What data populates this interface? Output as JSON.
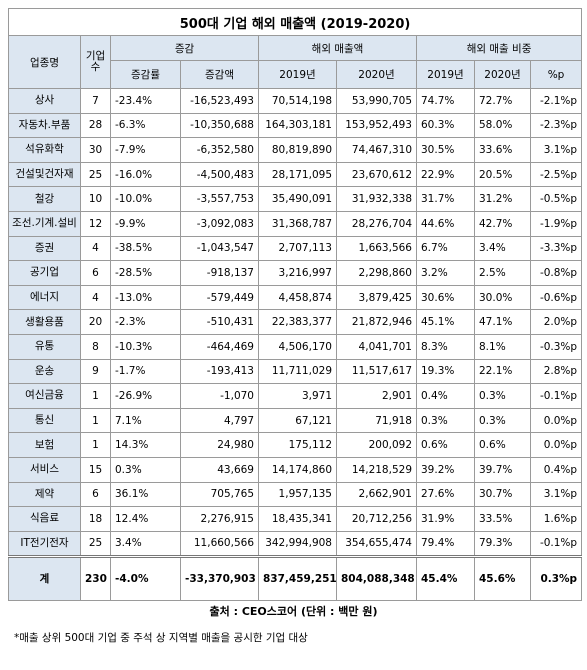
{
  "header": {
    "title": "500대 기업 해외 매출액 (2019-2020)"
  },
  "table": {
    "head": {
      "industry": "업종명",
      "count": "기업수",
      "change": "증감",
      "change_rate": "증감률",
      "change_amount": "증감액",
      "sales": "해외 매출액",
      "sales_2019": "2019년",
      "sales_2020": "2020년",
      "share": "해외 매출 비중",
      "share_2019": "2019년",
      "share_2020": "2020년",
      "share_diff": "%p"
    },
    "rows": [
      [
        "상사",
        "7",
        "-23.4%",
        "-16,523,493",
        "70,514,198",
        "53,990,705",
        "74.7%",
        "72.7%",
        "-2.1%p"
      ],
      [
        "자동차.부품",
        "28",
        "-6.3%",
        "-10,350,688",
        "164,303,181",
        "153,952,493",
        "60.3%",
        "58.0%",
        "-2.3%p"
      ],
      [
        "석유화학",
        "30",
        "-7.9%",
        "-6,352,580",
        "80,819,890",
        "74,467,310",
        "30.5%",
        "33.6%",
        "3.1%p"
      ],
      [
        "건설및건자재",
        "25",
        "-16.0%",
        "-4,500,483",
        "28,171,095",
        "23,670,612",
        "22.9%",
        "20.5%",
        "-2.5%p"
      ],
      [
        "철강",
        "10",
        "-10.0%",
        "-3,557,753",
        "35,490,091",
        "31,932,338",
        "31.7%",
        "31.2%",
        "-0.5%p"
      ],
      [
        "조선.기계.설비",
        "12",
        "-9.9%",
        "-3,092,083",
        "31,368,787",
        "28,276,704",
        "44.6%",
        "42.7%",
        "-1.9%p"
      ],
      [
        "증권",
        "4",
        "-38.5%",
        "-1,043,547",
        "2,707,113",
        "1,663,566",
        "6.7%",
        "3.4%",
        "-3.3%p"
      ],
      [
        "공기업",
        "6",
        "-28.5%",
        "-918,137",
        "3,216,997",
        "2,298,860",
        "3.2%",
        "2.5%",
        "-0.8%p"
      ],
      [
        "에너지",
        "4",
        "-13.0%",
        "-579,449",
        "4,458,874",
        "3,879,425",
        "30.6%",
        "30.0%",
        "-0.6%p"
      ],
      [
        "생활용품",
        "20",
        "-2.3%",
        "-510,431",
        "22,383,377",
        "21,872,946",
        "45.1%",
        "47.1%",
        "2.0%p"
      ],
      [
        "유통",
        "8",
        "-10.3%",
        "-464,469",
        "4,506,170",
        "4,041,701",
        "8.3%",
        "8.1%",
        "-0.3%p"
      ],
      [
        "운송",
        "9",
        "-1.7%",
        "-193,413",
        "11,711,029",
        "11,517,617",
        "19.3%",
        "22.1%",
        "2.8%p"
      ],
      [
        "여신금융",
        "1",
        "-26.9%",
        "-1,070",
        "3,971",
        "2,901",
        "0.4%",
        "0.3%",
        "-0.1%p"
      ],
      [
        "통신",
        "1",
        "7.1%",
        "4,797",
        "67,121",
        "71,918",
        "0.3%",
        "0.3%",
        "0.0%p"
      ],
      [
        "보험",
        "1",
        "14.3%",
        "24,980",
        "175,112",
        "200,092",
        "0.6%",
        "0.6%",
        "0.0%p"
      ],
      [
        "서비스",
        "15",
        "0.3%",
        "43,669",
        "14,174,860",
        "14,218,529",
        "39.2%",
        "39.7%",
        "0.4%p"
      ],
      [
        "제약",
        "6",
        "36.1%",
        "705,765",
        "1,957,135",
        "2,662,901",
        "27.6%",
        "30.7%",
        "3.1%p"
      ],
      [
        "식음료",
        "18",
        "12.4%",
        "2,276,915",
        "18,435,341",
        "20,712,256",
        "31.9%",
        "33.5%",
        "1.6%p"
      ],
      [
        "IT전기전자",
        "25",
        "3.4%",
        "11,660,566",
        "342,994,908",
        "354,655,474",
        "79.4%",
        "79.3%",
        "-0.1%p"
      ]
    ],
    "total": [
      "계",
      "230",
      "-4.0%",
      "-33,370,903",
      "837,459,251",
      "804,088,348",
      "45.4%",
      "45.6%",
      "0.3%p"
    ]
  },
  "footer": {
    "source": "출처 : CEO스코어 (단위 : 백만 원)",
    "note": "*매출 상위 500대 기업 중 주석 상 지역별 매출을 공시한 기업 대상"
  }
}
